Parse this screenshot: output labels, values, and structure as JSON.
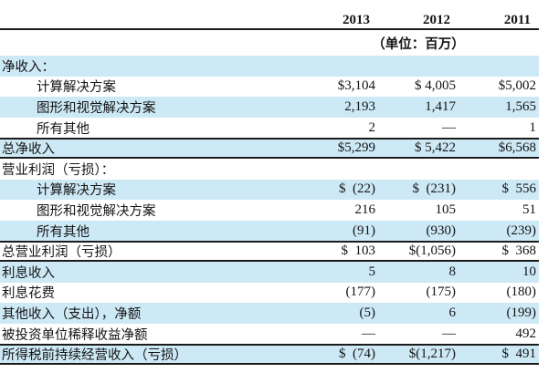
{
  "table": {
    "years": [
      "2013",
      "2012",
      "2011"
    ],
    "unit_note": "（单位：百万）",
    "rows": [
      {
        "label": "净收入：",
        "values": [
          "",
          "",
          ""
        ]
      },
      {
        "label": "计算解决方案",
        "values": [
          "$3,104",
          "$ 4,005",
          "$5,002"
        ]
      },
      {
        "label": "图形和视觉解决方案",
        "values": [
          "2,193",
          "1,417",
          "1,565"
        ]
      },
      {
        "label": "所有其他",
        "values": [
          "2",
          "—",
          "1"
        ]
      },
      {
        "label": "总净收入",
        "values": [
          "$5,299",
          "$ 5,422",
          "$6,568"
        ]
      },
      {
        "label": "营业利润（亏损）：",
        "values": [
          "",
          "",
          ""
        ]
      },
      {
        "label": "计算解决方案",
        "values": [
          "$  (22)",
          "$  (231)",
          "$  556"
        ]
      },
      {
        "label": "图形和视觉解决方案",
        "values": [
          "216",
          "105",
          "51"
        ]
      },
      {
        "label": "所有其他",
        "values": [
          "(91)",
          "(930)",
          "(239)"
        ]
      },
      {
        "label": "总营业利润（亏损）",
        "values": [
          "$  103",
          "$(1,056)",
          "$  368"
        ]
      },
      {
        "label": "利息收入",
        "values": [
          "5",
          "8",
          "10"
        ]
      },
      {
        "label": "利息花费",
        "values": [
          "(177)",
          "(175)",
          "(180)"
        ]
      },
      {
        "label": "其他收入（支出），净额",
        "values": [
          "(5)",
          "6",
          "(199)"
        ]
      },
      {
        "label": "被投资单位稀释收益净额",
        "values": [
          "—",
          "—",
          "492"
        ]
      },
      {
        "label": "所得税前持续经营收入（亏损）",
        "values": [
          "$  (74)",
          "$(1,217)",
          "$  491"
        ]
      }
    ],
    "accent_color": "#cde9f6",
    "rule_color": "#1b1b1b"
  }
}
